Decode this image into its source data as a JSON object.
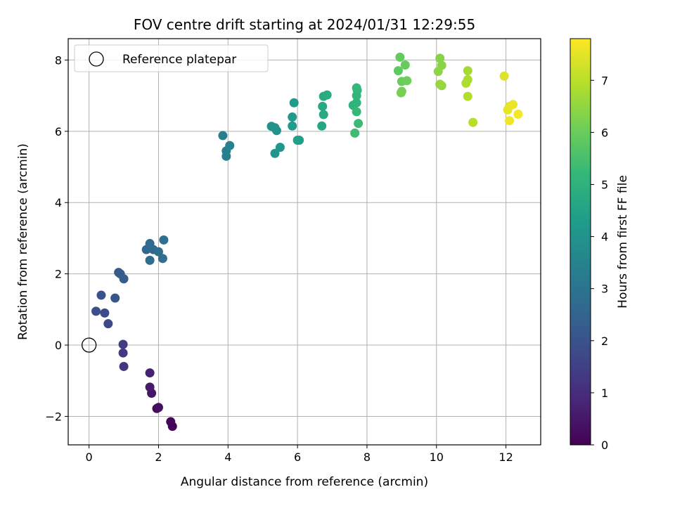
{
  "chart_data": {
    "type": "scatter",
    "title": "FOV centre drift starting at 2024/01/31 12:29:55",
    "xlabel": "Angular distance from reference (arcmin)",
    "ylabel": "Rotation from reference (arcmin)",
    "xlim": [
      -0.6,
      13.0
    ],
    "ylim": [
      -2.8,
      8.6
    ],
    "xticks": [
      0,
      2,
      4,
      6,
      8,
      10,
      12
    ],
    "yticks": [
      -2,
      0,
      2,
      4,
      6,
      8
    ],
    "xtick_labels": [
      "0",
      "2",
      "4",
      "6",
      "8",
      "10",
      "12"
    ],
    "ytick_labels": [
      "−2",
      "0",
      "2",
      "4",
      "6",
      "8"
    ],
    "grid": true,
    "colormap": "viridis",
    "colorbar": {
      "label": "Hours from first FF file",
      "range": [
        0,
        7.8
      ],
      "ticks": [
        0,
        1,
        2,
        3,
        4,
        5,
        6,
        7
      ],
      "tick_labels": [
        "0",
        "1",
        "2",
        "3",
        "4",
        "5",
        "6",
        "7"
      ]
    },
    "legend": {
      "placement": "top-left",
      "entries": [
        {
          "label": "Reference platepar",
          "marker": "open-circle"
        }
      ]
    },
    "reference_point": {
      "x": 0,
      "y": 0
    },
    "points": [
      [
        2.4,
        -2.28,
        0.05
      ],
      [
        2.35,
        -2.15,
        0.1
      ],
      [
        1.95,
        -1.78,
        0.2
      ],
      [
        2.0,
        -1.75,
        0.3
      ],
      [
        1.8,
        -1.35,
        0.45
      ],
      [
        1.75,
        -1.18,
        0.55
      ],
      [
        1.75,
        -0.78,
        0.7
      ],
      [
        1.0,
        -0.6,
        1.2
      ],
      [
        0.98,
        -0.22,
        1.3
      ],
      [
        0.98,
        0.02,
        1.4
      ],
      [
        0.55,
        0.6,
        1.7
      ],
      [
        0.45,
        0.9,
        1.8
      ],
      [
        0.2,
        0.95,
        1.9
      ],
      [
        0.35,
        1.4,
        2.0
      ],
      [
        0.75,
        1.32,
        2.1
      ],
      [
        0.85,
        2.04,
        2.2
      ],
      [
        0.9,
        2.0,
        2.25
      ],
      [
        1.0,
        1.86,
        2.3
      ],
      [
        1.65,
        2.68,
        2.6
      ],
      [
        1.75,
        2.85,
        2.65
      ],
      [
        1.85,
        2.68,
        2.7
      ],
      [
        1.75,
        2.38,
        2.75
      ],
      [
        2.0,
        2.62,
        2.8
      ],
      [
        2.12,
        2.43,
        2.85
      ],
      [
        2.15,
        2.95,
        2.9
      ],
      [
        3.85,
        5.88,
        3.3
      ],
      [
        3.95,
        5.3,
        3.35
      ],
      [
        3.95,
        5.45,
        3.4
      ],
      [
        4.05,
        5.6,
        3.45
      ],
      [
        5.25,
        6.14,
        3.9
      ],
      [
        5.35,
        6.1,
        3.95
      ],
      [
        5.4,
        6.02,
        4.0
      ],
      [
        5.35,
        5.38,
        4.05
      ],
      [
        5.5,
        5.55,
        4.1
      ],
      [
        5.85,
        6.4,
        4.2
      ],
      [
        5.9,
        6.8,
        4.25
      ],
      [
        5.85,
        6.15,
        4.3
      ],
      [
        6.05,
        5.75,
        4.35
      ],
      [
        6.0,
        5.75,
        4.4
      ],
      [
        6.7,
        6.15,
        4.6
      ],
      [
        6.72,
        6.7,
        4.65
      ],
      [
        6.75,
        6.47,
        4.7
      ],
      [
        6.75,
        6.98,
        4.75
      ],
      [
        6.85,
        7.02,
        4.8
      ],
      [
        7.6,
        6.73,
        5.0
      ],
      [
        7.7,
        6.8,
        5.05
      ],
      [
        7.7,
        7.0,
        5.1
      ],
      [
        7.72,
        7.15,
        5.15
      ],
      [
        7.7,
        7.22,
        5.2
      ],
      [
        7.7,
        6.55,
        5.25
      ],
      [
        7.75,
        6.22,
        5.3
      ],
      [
        7.65,
        5.95,
        5.35
      ],
      [
        8.9,
        7.7,
        5.85
      ],
      [
        8.95,
        8.08,
        5.9
      ],
      [
        9.1,
        7.86,
        5.95
      ],
      [
        9.0,
        7.4,
        6.0
      ],
      [
        9.15,
        7.42,
        6.05
      ],
      [
        9.0,
        7.12,
        6.1
      ],
      [
        8.98,
        7.08,
        6.15
      ],
      [
        10.1,
        8.05,
        6.35
      ],
      [
        10.15,
        7.85,
        6.4
      ],
      [
        10.05,
        7.68,
        6.45
      ],
      [
        10.15,
        7.28,
        6.5
      ],
      [
        10.1,
        7.32,
        6.55
      ],
      [
        10.9,
        7.7,
        6.75
      ],
      [
        10.9,
        7.45,
        6.8
      ],
      [
        10.85,
        7.35,
        6.85
      ],
      [
        10.9,
        6.98,
        6.9
      ],
      [
        11.05,
        6.25,
        6.95
      ],
      [
        11.95,
        7.55,
        7.4
      ],
      [
        12.1,
        6.7,
        7.5
      ],
      [
        12.05,
        6.6,
        7.55
      ],
      [
        12.2,
        6.75,
        7.6
      ],
      [
        12.1,
        6.3,
        7.65
      ],
      [
        12.35,
        6.48,
        7.7
      ]
    ]
  }
}
